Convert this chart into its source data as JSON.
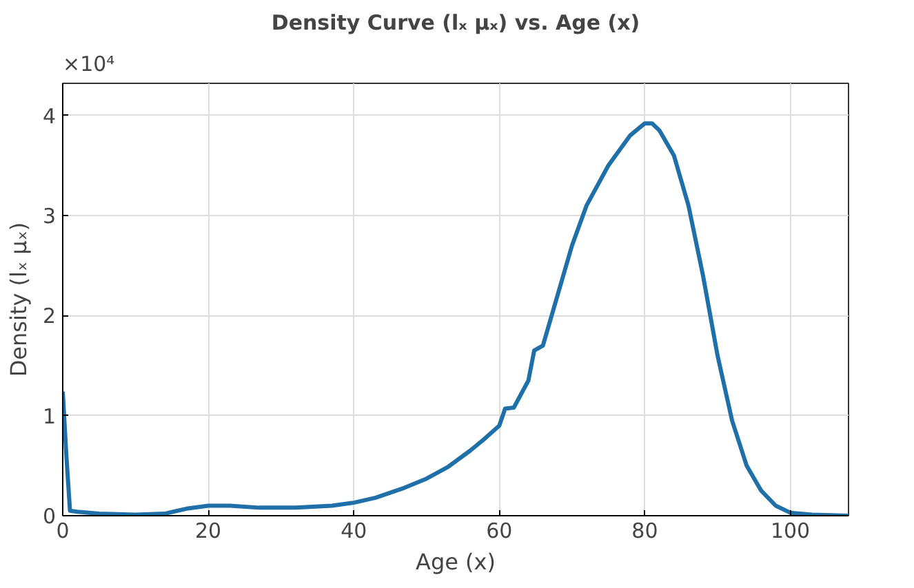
{
  "chart_data": {
    "type": "line",
    "title": "Density Curve (lₓ μₓ) vs. Age (x)",
    "xlabel": "Age (x)",
    "ylabel": "Density (lₓ μₓ)",
    "annotations": [
      "×10⁴"
    ],
    "xlim": [
      0,
      108
    ],
    "ylim": [
      0,
      4.32
    ],
    "xticks": [
      0,
      20,
      40,
      60,
      80,
      100
    ],
    "yticks": [
      0,
      1,
      2,
      3,
      4
    ],
    "grid": true,
    "marker": "none",
    "line_style": "solid",
    "series": [
      {
        "color": "#1f6fa8",
        "x": [
          0,
          0.5,
          1,
          2,
          5,
          10,
          14,
          17,
          20,
          23,
          27,
          32,
          37,
          40,
          43,
          47,
          50,
          53,
          56,
          58,
          60,
          60.8,
          62,
          64,
          64.8,
          66,
          68,
          70,
          72,
          75,
          78,
          80,
          81,
          82,
          84,
          86,
          88,
          90,
          92,
          94,
          96,
          98,
          100,
          103,
          108
        ],
        "values": [
          1.24,
          0.6,
          0.05,
          0.04,
          0.02,
          0.01,
          0.02,
          0.07,
          0.1,
          0.1,
          0.08,
          0.08,
          0.1,
          0.13,
          0.18,
          0.28,
          0.37,
          0.49,
          0.65,
          0.77,
          0.9,
          1.07,
          1.08,
          1.35,
          1.65,
          1.7,
          2.2,
          2.7,
          3.1,
          3.5,
          3.8,
          3.92,
          3.92,
          3.85,
          3.6,
          3.1,
          2.4,
          1.6,
          0.95,
          0.5,
          0.25,
          0.1,
          0.03,
          0.01,
          0
        ]
      }
    ]
  }
}
